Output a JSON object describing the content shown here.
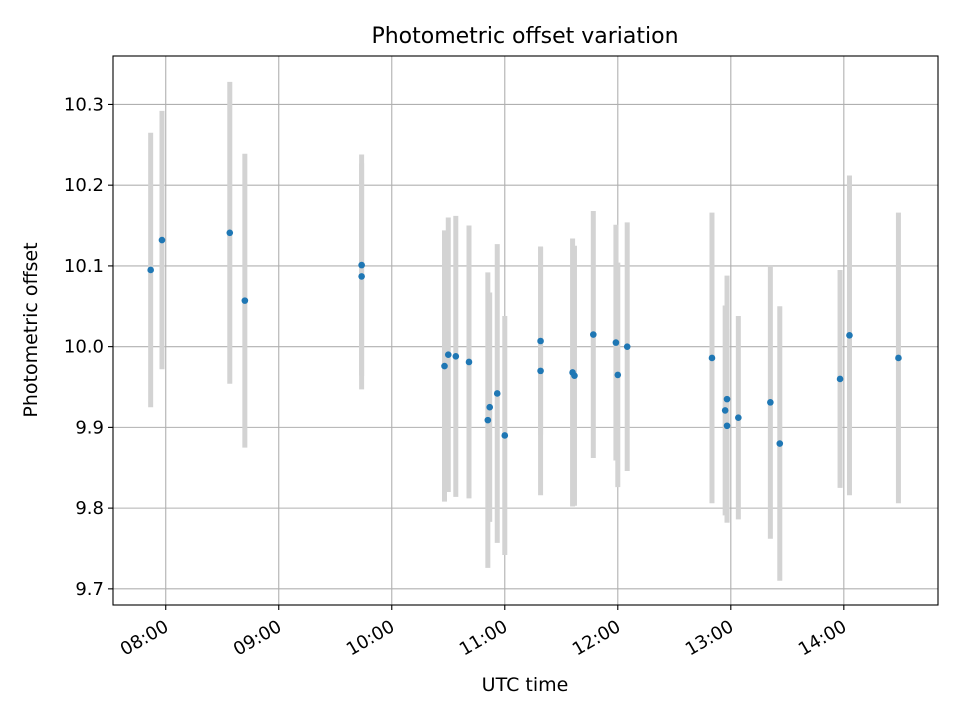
{
  "colors": {
    "point": "#1f77b4",
    "errorbar": "#d3d3d3",
    "grid": "#b0b0b0",
    "axis": "#000000",
    "background": "#ffffff"
  },
  "chart_data": {
    "type": "scatter",
    "title": "Photometric offset variation",
    "xlabel": "UTC time",
    "ylabel": "Photometric offset",
    "x_axis_type": "time",
    "xlim": [
      "07:32",
      "14:50"
    ],
    "ylim": [
      9.68,
      10.36
    ],
    "xticks": [
      "08:00",
      "09:00",
      "10:00",
      "11:00",
      "12:00",
      "13:00",
      "14:00"
    ],
    "yticks": [
      "9.7",
      "9.8",
      "9.9",
      "10.0",
      "10.1",
      "10.2",
      "10.3"
    ],
    "grid": true,
    "legend": "none",
    "points": [
      {
        "x": "07:52",
        "y": 10.095,
        "err": 0.17
      },
      {
        "x": "07:58",
        "y": 10.132,
        "err": 0.16
      },
      {
        "x": "08:34",
        "y": 10.141,
        "err": 0.187
      },
      {
        "x": "08:42",
        "y": 10.057,
        "err": 0.182
      },
      {
        "x": "09:44",
        "y": 10.101,
        "err": 0.137
      },
      {
        "x": "09:44",
        "y": 10.087,
        "err": 0.14
      },
      {
        "x": "10:28",
        "y": 9.976,
        "err": 0.168
      },
      {
        "x": "10:30",
        "y": 9.99,
        "err": 0.17
      },
      {
        "x": "10:34",
        "y": 9.988,
        "err": 0.174
      },
      {
        "x": "10:41",
        "y": 9.981,
        "err": 0.169
      },
      {
        "x": "10:51",
        "y": 9.909,
        "err": 0.183
      },
      {
        "x": "10:52",
        "y": 9.925,
        "err": 0.142
      },
      {
        "x": "10:56",
        "y": 9.942,
        "err": 0.185
      },
      {
        "x": "11:00",
        "y": 9.89,
        "err": 0.148
      },
      {
        "x": "11:19",
        "y": 10.007,
        "err": 0.116
      },
      {
        "x": "11:19",
        "y": 9.97,
        "err": 0.154
      },
      {
        "x": "11:36",
        "y": 9.968,
        "err": 0.166
      },
      {
        "x": "11:37",
        "y": 9.964,
        "err": 0.161
      },
      {
        "x": "11:47",
        "y": 10.015,
        "err": 0.153
      },
      {
        "x": "11:59",
        "y": 10.005,
        "err": 0.146
      },
      {
        "x": "12:00",
        "y": 9.965,
        "err": 0.139
      },
      {
        "x": "12:05",
        "y": 10.0,
        "err": 0.154
      },
      {
        "x": "12:50",
        "y": 9.986,
        "err": 0.18
      },
      {
        "x": "12:57",
        "y": 9.921,
        "err": 0.13
      },
      {
        "x": "12:58",
        "y": 9.935,
        "err": 0.153
      },
      {
        "x": "12:58",
        "y": 9.902,
        "err": 0.12
      },
      {
        "x": "13:04",
        "y": 9.912,
        "err": 0.126
      },
      {
        "x": "13:21",
        "y": 9.931,
        "err": 0.169
      },
      {
        "x": "13:26",
        "y": 9.88,
        "err": 0.17
      },
      {
        "x": "13:58",
        "y": 9.96,
        "err": 0.135
      },
      {
        "x": "14:03",
        "y": 10.014,
        "err": 0.198
      },
      {
        "x": "14:29",
        "y": 9.986,
        "err": 0.18
      }
    ]
  }
}
